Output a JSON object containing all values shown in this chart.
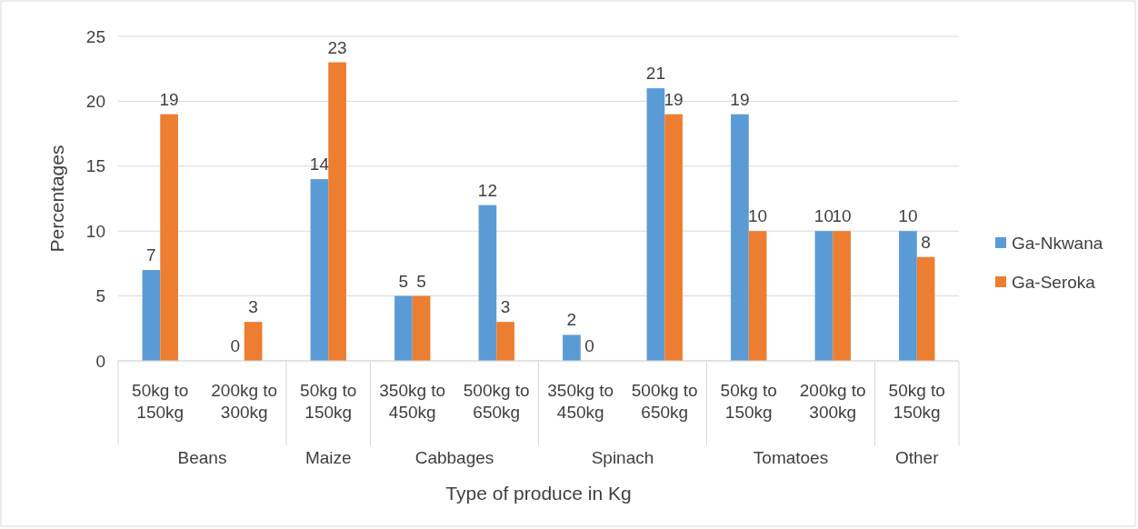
{
  "chart_data": {
    "type": "bar",
    "xlabel": "Type of produce in Kg",
    "ylabel": "Percentages",
    "categories": [
      "50kg to 150kg",
      "200kg to 300kg",
      "50kg to 150kg",
      "350kg to 450kg",
      "500kg to 650kg",
      "350kg to 450kg",
      "500kg to 650kg",
      "50kg to 150kg",
      "200kg to 300kg",
      "50kg to 150kg"
    ],
    "series": [
      {
        "name": "Ga-Nkwana",
        "color": "#5b9bd5",
        "values": [
          7,
          0,
          14,
          5,
          12,
          2,
          21,
          19,
          10,
          10
        ]
      },
      {
        "name": "Ga-Seroka",
        "color": "#ed7d31",
        "values": [
          19,
          3,
          23,
          5,
          3,
          0,
          19,
          10,
          10,
          8
        ]
      }
    ],
    "annotations": [
      "Beans",
      "Maize",
      "Cabbages",
      "Spinach",
      "Tomatoes",
      "Other"
    ],
    "ylim": [
      0,
      25
    ],
    "yticks": [
      0,
      5,
      10,
      15,
      20,
      25
    ],
    "grid": "y",
    "legend": "right",
    "data_labels": true
  }
}
